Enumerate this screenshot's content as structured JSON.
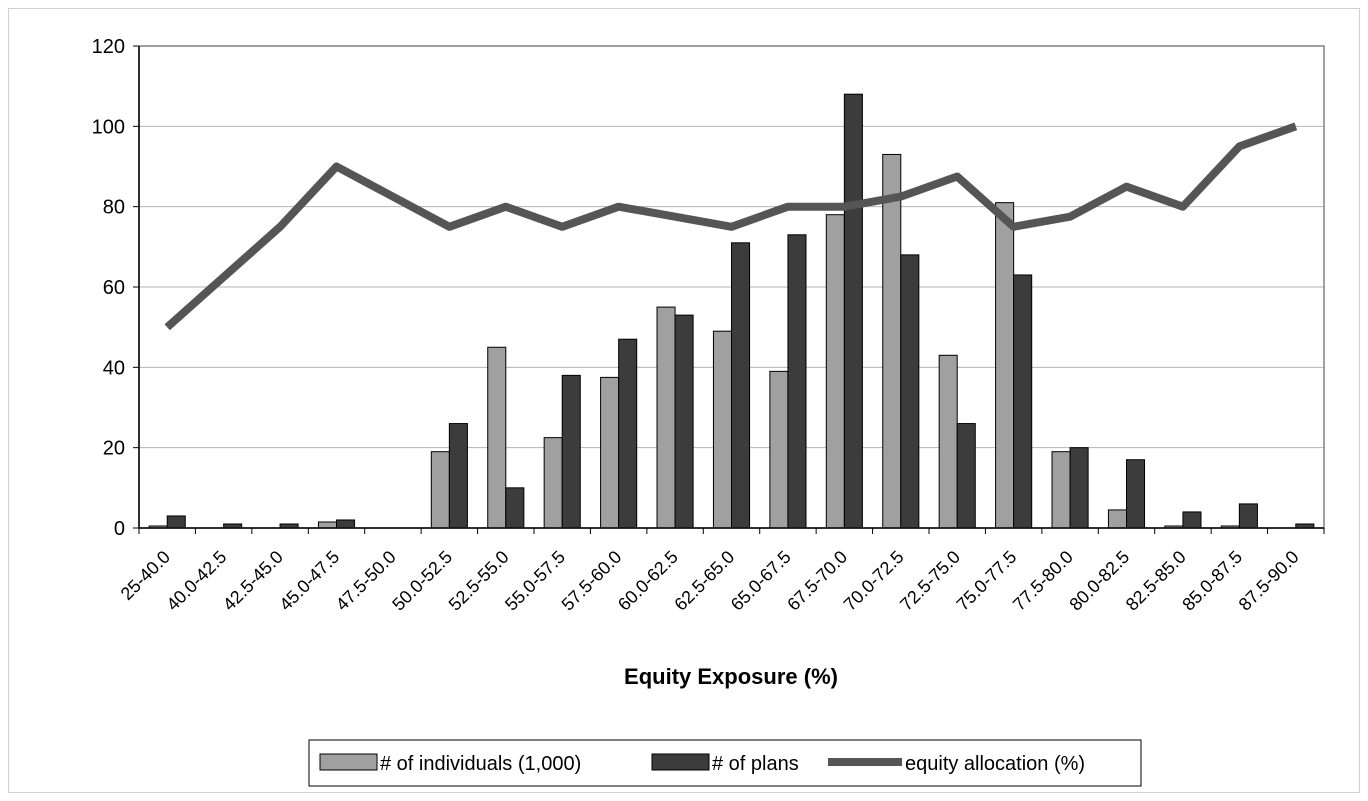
{
  "chart_data": {
    "type": "bar",
    "xlabel": "Equity Exposure (%)",
    "ylim": [
      0,
      120
    ],
    "yticks": [
      0,
      20,
      40,
      60,
      80,
      100,
      120
    ],
    "grid": true,
    "legend_position": "bottom",
    "categories": [
      "25-40.0",
      "40.0-42.5",
      "42.5-45.0",
      "45.0-47.5",
      "47.5-50.0",
      "50.0-52.5",
      "52.5-55.0",
      "55.0-57.5",
      "57.5-60.0",
      "60.0-62.5",
      "62.5-65.0",
      "65.0-67.5",
      "67.5-70.0",
      "70.0-72.5",
      "72.5-75.0",
      "75.0-77.5",
      "77.5-80.0",
      "80.0-82.5",
      "82.5-85.0",
      "85.0-87.5",
      "87.5-90.0"
    ],
    "series": [
      {
        "name": "# of individuals (1,000)",
        "kind": "bar",
        "color": "#a0a0a0",
        "values": [
          0.5,
          0,
          0,
          1.5,
          0,
          19,
          45,
          22.5,
          37.5,
          55,
          49,
          39,
          78,
          93,
          43,
          81,
          19,
          4.5,
          0.5,
          0.5,
          0
        ]
      },
      {
        "name": "# of plans",
        "kind": "bar",
        "color": "#3c3c3c",
        "values": [
          3,
          1,
          1,
          2,
          0,
          26,
          10,
          38,
          47,
          53,
          71,
          73,
          108,
          68,
          26,
          63,
          20,
          17,
          4,
          6,
          1
        ]
      },
      {
        "name": "equity allocation (%)",
        "kind": "line",
        "color": "#555555",
        "values": [
          50,
          62.5,
          75,
          90,
          82.5,
          75,
          80,
          75,
          80,
          77.5,
          75,
          80,
          80,
          82.5,
          87.5,
          75,
          77.5,
          85,
          80,
          95,
          100
        ]
      }
    ]
  }
}
